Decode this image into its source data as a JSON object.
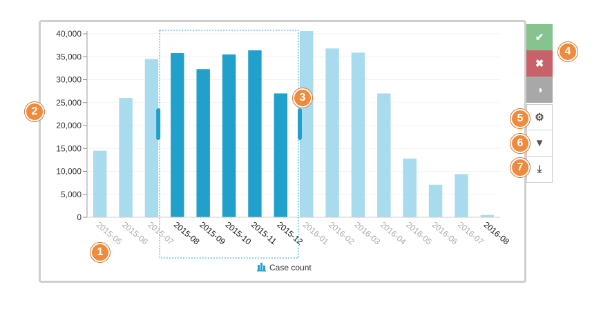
{
  "chart_data": {
    "type": "bar",
    "categories": [
      "2015-05",
      "2015-06",
      "2015-07",
      "2015-08",
      "2015-09",
      "2015-10",
      "2015-11",
      "2015-12",
      "2016-01",
      "2016-02",
      "2016-03",
      "2016-04",
      "2016-05",
      "2016-06",
      "2016-07",
      "2016-08"
    ],
    "values": [
      14500,
      26000,
      34500,
      35800,
      32300,
      35500,
      36400,
      27000,
      40600,
      36800,
      35900,
      27000,
      12800,
      7100,
      9400,
      500
    ],
    "selected_categories": [
      "2015-08",
      "2015-09",
      "2015-10",
      "2015-11",
      "2015-12"
    ],
    "ylim": [
      0,
      40000
    ],
    "yticks": [
      0,
      5000,
      10000,
      15000,
      20000,
      25000,
      30000,
      35000,
      40000
    ],
    "ytick_labels": [
      "0",
      "5,000",
      "10,000",
      "15,000",
      "20,000",
      "25,000",
      "30,000",
      "35,000",
      "40,000"
    ],
    "legend": {
      "label": "Case count",
      "placement": "bottom-center"
    },
    "colors": {
      "selected": "#22a0cc",
      "unselected": "#a9dbee",
      "selection_box": "#22a0cc"
    }
  },
  "toolbar": {
    "ok_glyph": "✔",
    "cancel_glyph": "✖",
    "contrast_glyph": "◑",
    "settings_glyph": "⚙",
    "filter_glyph": "▼",
    "download_glyph": "⤓"
  },
  "badges": [
    "1",
    "2",
    "3",
    "4",
    "5",
    "6",
    "7"
  ]
}
